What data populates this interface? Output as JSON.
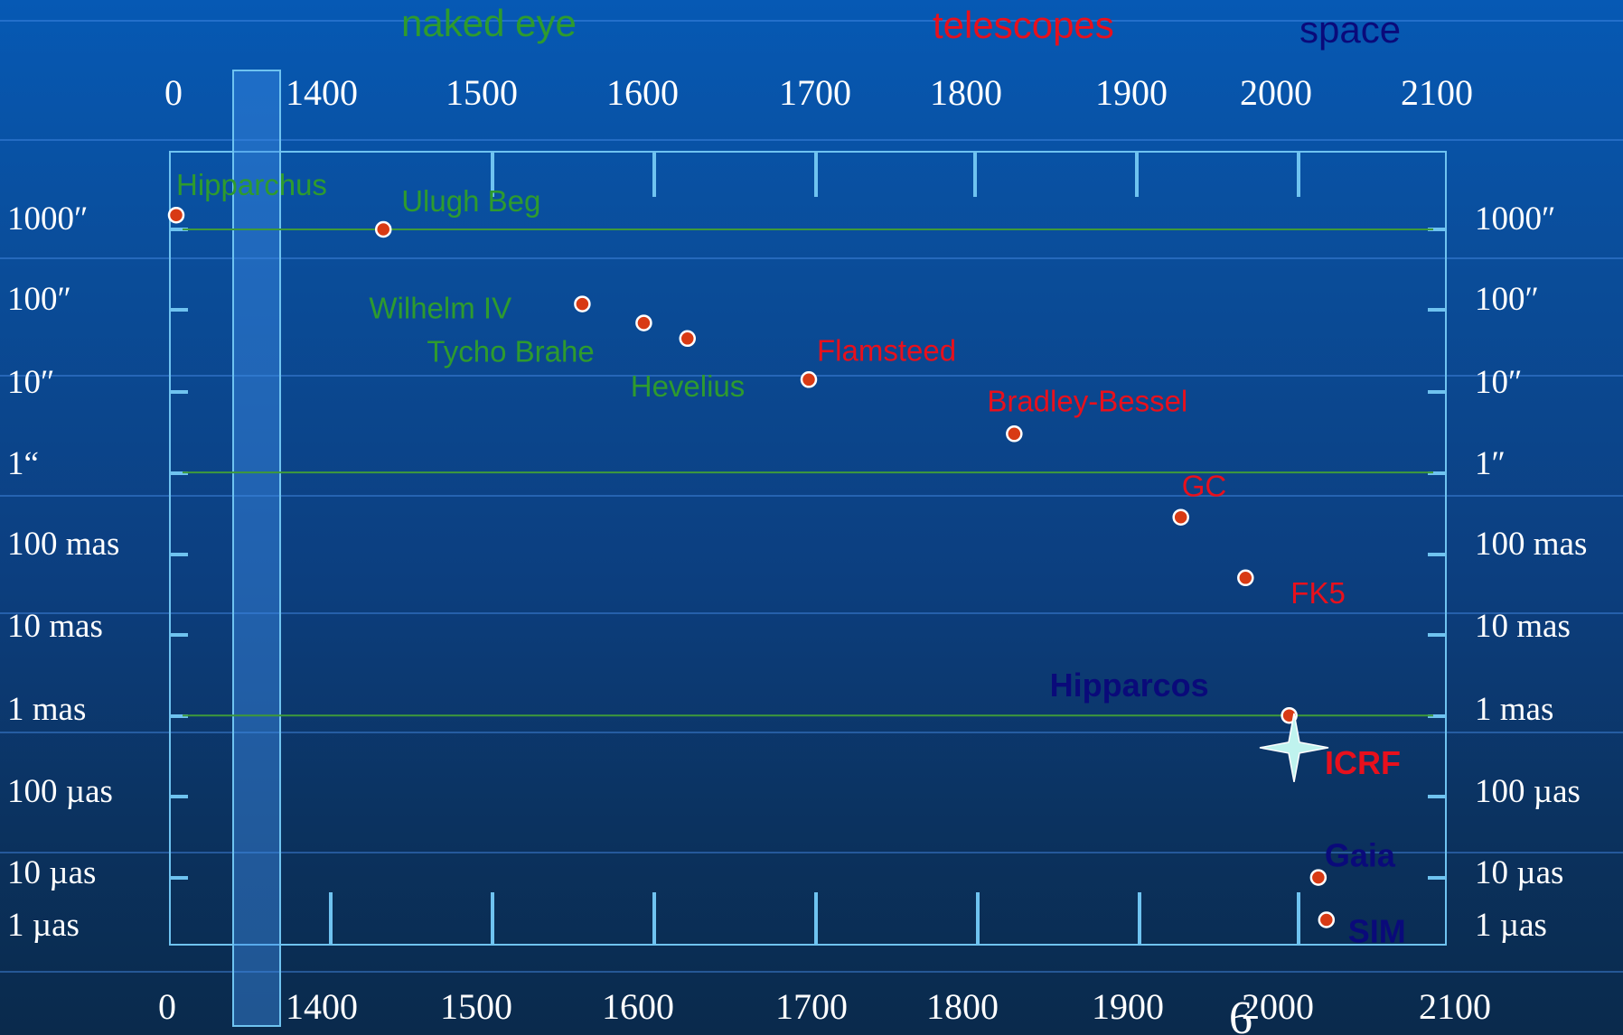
{
  "colors": {
    "naked_eye": "#2e9b2e",
    "telescopes": "#e8101c",
    "space": "#0a0a7a",
    "axis": "#6fc3f0",
    "point_fill": "#d83a14",
    "point_stroke": "#ffffff",
    "ref_line": "#3f9a3a",
    "icrf_star": "#bff3ee"
  },
  "page_number": "6",
  "eras": [
    {
      "key": "naked_eye",
      "label": "naked eye"
    },
    {
      "key": "telescopes",
      "label": "telescopes"
    },
    {
      "key": "space",
      "label": "space"
    }
  ],
  "chart_data": {
    "type": "scatter",
    "x_scale": "broken-linear (year) with a break after 0",
    "y_scale": "log (accuracy, 1000″ down to 1 µas)",
    "x_ticks_top": [
      "0",
      "1400",
      "1500",
      "1600",
      "1700",
      "1800",
      "1900",
      "2000",
      "2100"
    ],
    "x_ticks_bottom": [
      "0",
      "1400",
      "1500",
      "1600",
      "1700",
      "1800",
      "1900",
      "2000",
      "2100"
    ],
    "y_ticks_left": [
      "1000″",
      "100″",
      "10″",
      "1“",
      "100 mas",
      "10 mas",
      "1 mas",
      "100 µas",
      "10 µas",
      "1 µas"
    ],
    "y_ticks_right": [
      "1000″",
      "100″",
      "10″",
      "1″",
      "100 mas",
      "10 mas",
      "1 mas",
      "100 µas",
      "10 µas",
      "1 µas"
    ],
    "reference_lines": [
      "1000″",
      "1″",
      "1 mas"
    ],
    "grid": false,
    "points": [
      {
        "label": "Hipparchus",
        "year": 0,
        "accuracy": "1500″",
        "era": "naked_eye"
      },
      {
        "label": "Ulugh Beg",
        "year": 1437,
        "accuracy": "1000″",
        "era": "naked_eye"
      },
      {
        "label": "Wilhelm IV",
        "year": 1560,
        "accuracy": "120″",
        "era": "naked_eye"
      },
      {
        "label": "Tycho Brahe",
        "year": 1598,
        "accuracy": "70″",
        "era": "naked_eye"
      },
      {
        "label": "Hevelius",
        "year": 1625,
        "accuracy": "45″",
        "era": "naked_eye"
      },
      {
        "label": "Flamsteed",
        "year": 1700,
        "accuracy": "14″",
        "era": "telescopes"
      },
      {
        "label": "Bradley-Bessel",
        "year": 1827,
        "accuracy": "3″",
        "era": "telescopes"
      },
      {
        "label": "GC",
        "year": 1930,
        "accuracy": "280 mas",
        "era": "telescopes"
      },
      {
        "label": "FK5",
        "year": 1970,
        "accuracy": "50 mas",
        "era": "telescopes"
      },
      {
        "label": "Hipparcos",
        "year": 1997,
        "accuracy": "1 mas",
        "era": "space"
      },
      {
        "label": "ICRF",
        "year": 2000,
        "accuracy": "400 µas",
        "era": "telescopes",
        "marker": "star"
      },
      {
        "label": "Gaia",
        "year": 2015,
        "accuracy": "10 µas",
        "era": "space"
      },
      {
        "label": "SIM",
        "year": 2020,
        "accuracy": "3 µas",
        "era": "space"
      }
    ]
  }
}
